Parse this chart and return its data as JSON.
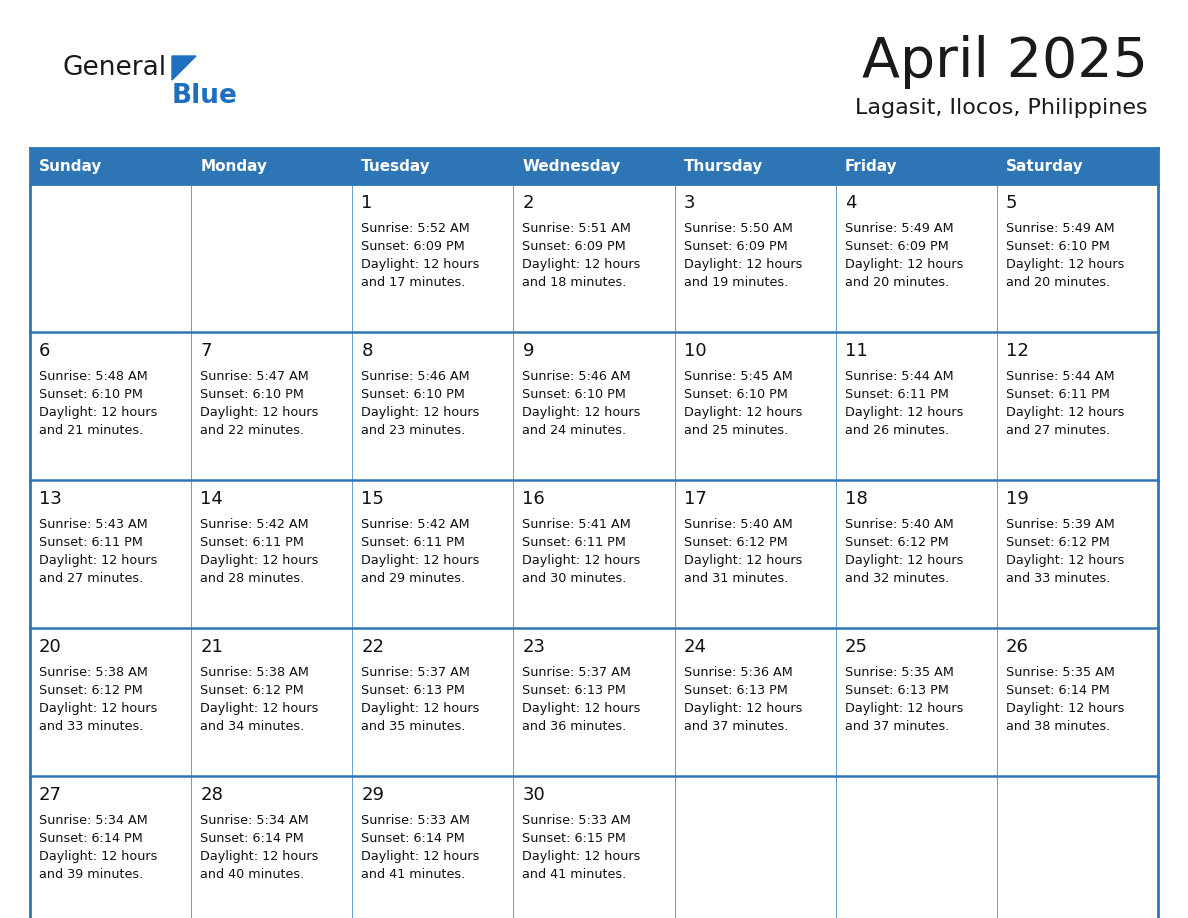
{
  "title": "April 2025",
  "subtitle": "Lagasit, Ilocos, Philippines",
  "header_bg": "#2E75B6",
  "header_text": "#FFFFFF",
  "cell_bg": "#FFFFFF",
  "border_color": "#2E75B6",
  "border_color_light": "#B8CCE4",
  "day_names": [
    "Sunday",
    "Monday",
    "Tuesday",
    "Wednesday",
    "Thursday",
    "Friday",
    "Saturday"
  ],
  "title_color": "#1a1a1a",
  "subtitle_color": "#1a1a1a",
  "logo_general_color": "#1a1a1a",
  "logo_blue_color": "#1F6FBF",
  "text_color": "#111111",
  "days": [
    {
      "date": 1,
      "row": 0,
      "col": 2,
      "sunrise": "5:52 AM",
      "sunset": "6:09 PM",
      "daylight_hours": 12,
      "daylight_minutes": 17
    },
    {
      "date": 2,
      "row": 0,
      "col": 3,
      "sunrise": "5:51 AM",
      "sunset": "6:09 PM",
      "daylight_hours": 12,
      "daylight_minutes": 18
    },
    {
      "date": 3,
      "row": 0,
      "col": 4,
      "sunrise": "5:50 AM",
      "sunset": "6:09 PM",
      "daylight_hours": 12,
      "daylight_minutes": 19
    },
    {
      "date": 4,
      "row": 0,
      "col": 5,
      "sunrise": "5:49 AM",
      "sunset": "6:09 PM",
      "daylight_hours": 12,
      "daylight_minutes": 20
    },
    {
      "date": 5,
      "row": 0,
      "col": 6,
      "sunrise": "5:49 AM",
      "sunset": "6:10 PM",
      "daylight_hours": 12,
      "daylight_minutes": 20
    },
    {
      "date": 6,
      "row": 1,
      "col": 0,
      "sunrise": "5:48 AM",
      "sunset": "6:10 PM",
      "daylight_hours": 12,
      "daylight_minutes": 21
    },
    {
      "date": 7,
      "row": 1,
      "col": 1,
      "sunrise": "5:47 AM",
      "sunset": "6:10 PM",
      "daylight_hours": 12,
      "daylight_minutes": 22
    },
    {
      "date": 8,
      "row": 1,
      "col": 2,
      "sunrise": "5:46 AM",
      "sunset": "6:10 PM",
      "daylight_hours": 12,
      "daylight_minutes": 23
    },
    {
      "date": 9,
      "row": 1,
      "col": 3,
      "sunrise": "5:46 AM",
      "sunset": "6:10 PM",
      "daylight_hours": 12,
      "daylight_minutes": 24
    },
    {
      "date": 10,
      "row": 1,
      "col": 4,
      "sunrise": "5:45 AM",
      "sunset": "6:10 PM",
      "daylight_hours": 12,
      "daylight_minutes": 25
    },
    {
      "date": 11,
      "row": 1,
      "col": 5,
      "sunrise": "5:44 AM",
      "sunset": "6:11 PM",
      "daylight_hours": 12,
      "daylight_minutes": 26
    },
    {
      "date": 12,
      "row": 1,
      "col": 6,
      "sunrise": "5:44 AM",
      "sunset": "6:11 PM",
      "daylight_hours": 12,
      "daylight_minutes": 27
    },
    {
      "date": 13,
      "row": 2,
      "col": 0,
      "sunrise": "5:43 AM",
      "sunset": "6:11 PM",
      "daylight_hours": 12,
      "daylight_minutes": 27
    },
    {
      "date": 14,
      "row": 2,
      "col": 1,
      "sunrise": "5:42 AM",
      "sunset": "6:11 PM",
      "daylight_hours": 12,
      "daylight_minutes": 28
    },
    {
      "date": 15,
      "row": 2,
      "col": 2,
      "sunrise": "5:42 AM",
      "sunset": "6:11 PM",
      "daylight_hours": 12,
      "daylight_minutes": 29
    },
    {
      "date": 16,
      "row": 2,
      "col": 3,
      "sunrise": "5:41 AM",
      "sunset": "6:11 PM",
      "daylight_hours": 12,
      "daylight_minutes": 30
    },
    {
      "date": 17,
      "row": 2,
      "col": 4,
      "sunrise": "5:40 AM",
      "sunset": "6:12 PM",
      "daylight_hours": 12,
      "daylight_minutes": 31
    },
    {
      "date": 18,
      "row": 2,
      "col": 5,
      "sunrise": "5:40 AM",
      "sunset": "6:12 PM",
      "daylight_hours": 12,
      "daylight_minutes": 32
    },
    {
      "date": 19,
      "row": 2,
      "col": 6,
      "sunrise": "5:39 AM",
      "sunset": "6:12 PM",
      "daylight_hours": 12,
      "daylight_minutes": 33
    },
    {
      "date": 20,
      "row": 3,
      "col": 0,
      "sunrise": "5:38 AM",
      "sunset": "6:12 PM",
      "daylight_hours": 12,
      "daylight_minutes": 33
    },
    {
      "date": 21,
      "row": 3,
      "col": 1,
      "sunrise": "5:38 AM",
      "sunset": "6:12 PM",
      "daylight_hours": 12,
      "daylight_minutes": 34
    },
    {
      "date": 22,
      "row": 3,
      "col": 2,
      "sunrise": "5:37 AM",
      "sunset": "6:13 PM",
      "daylight_hours": 12,
      "daylight_minutes": 35
    },
    {
      "date": 23,
      "row": 3,
      "col": 3,
      "sunrise": "5:37 AM",
      "sunset": "6:13 PM",
      "daylight_hours": 12,
      "daylight_minutes": 36
    },
    {
      "date": 24,
      "row": 3,
      "col": 4,
      "sunrise": "5:36 AM",
      "sunset": "6:13 PM",
      "daylight_hours": 12,
      "daylight_minutes": 37
    },
    {
      "date": 25,
      "row": 3,
      "col": 5,
      "sunrise": "5:35 AM",
      "sunset": "6:13 PM",
      "daylight_hours": 12,
      "daylight_minutes": 37
    },
    {
      "date": 26,
      "row": 3,
      "col": 6,
      "sunrise": "5:35 AM",
      "sunset": "6:14 PM",
      "daylight_hours": 12,
      "daylight_minutes": 38
    },
    {
      "date": 27,
      "row": 4,
      "col": 0,
      "sunrise": "5:34 AM",
      "sunset": "6:14 PM",
      "daylight_hours": 12,
      "daylight_minutes": 39
    },
    {
      "date": 28,
      "row": 4,
      "col": 1,
      "sunrise": "5:34 AM",
      "sunset": "6:14 PM",
      "daylight_hours": 12,
      "daylight_minutes": 40
    },
    {
      "date": 29,
      "row": 4,
      "col": 2,
      "sunrise": "5:33 AM",
      "sunset": "6:14 PM",
      "daylight_hours": 12,
      "daylight_minutes": 41
    },
    {
      "date": 30,
      "row": 4,
      "col": 3,
      "sunrise": "5:33 AM",
      "sunset": "6:15 PM",
      "daylight_hours": 12,
      "daylight_minutes": 41
    }
  ]
}
